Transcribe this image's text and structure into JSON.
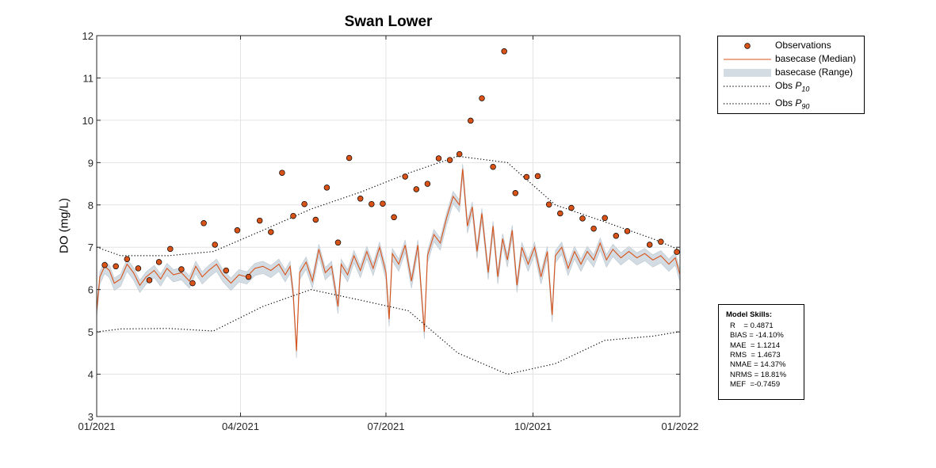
{
  "chart_data": {
    "type": "line",
    "title": "Swan Lower",
    "xlabel": "",
    "ylabel": "DO (mg/L)",
    "xlim": [
      "2021-01-01",
      "2022-01-01"
    ],
    "ylim": [
      3,
      12
    ],
    "x_ticks": [
      {
        "date": "2021-01-01",
        "label": "01/2021"
      },
      {
        "date": "2021-04-01",
        "label": "04/2021"
      },
      {
        "date": "2021-07-01",
        "label": "07/2021"
      },
      {
        "date": "2021-10-01",
        "label": "10/2021"
      },
      {
        "date": "2022-01-01",
        "label": "01/2022"
      }
    ],
    "y_ticks": [
      3,
      4,
      5,
      6,
      7,
      8,
      9,
      10,
      11,
      12
    ],
    "grid": true,
    "legend_position": "outside-top-right",
    "series": [
      {
        "name": "Observations",
        "kind": "scatter",
        "color": "#d95319",
        "edge_color": "#000000",
        "points": [
          [
            "2021-01-06",
            6.58
          ],
          [
            "2021-01-13",
            6.55
          ],
          [
            "2021-01-20",
            6.72
          ],
          [
            "2021-01-27",
            6.5
          ],
          [
            "2021-02-03",
            6.22
          ],
          [
            "2021-02-09",
            6.65
          ],
          [
            "2021-02-16",
            6.96
          ],
          [
            "2021-02-23",
            6.48
          ],
          [
            "2021-03-02",
            6.15
          ],
          [
            "2021-03-09",
            7.57
          ],
          [
            "2021-03-16",
            7.06
          ],
          [
            "2021-03-23",
            6.45
          ],
          [
            "2021-03-30",
            7.4
          ],
          [
            "2021-04-06",
            6.3
          ],
          [
            "2021-04-13",
            7.63
          ],
          [
            "2021-04-20",
            7.36
          ],
          [
            "2021-04-27",
            8.76
          ],
          [
            "2021-05-04",
            7.74
          ],
          [
            "2021-05-11",
            8.02
          ],
          [
            "2021-05-18",
            7.65
          ],
          [
            "2021-05-25",
            8.41
          ],
          [
            "2021-06-01",
            7.11
          ],
          [
            "2021-06-08",
            9.11
          ],
          [
            "2021-06-15",
            8.15
          ],
          [
            "2021-06-22",
            8.02
          ],
          [
            "2021-06-29",
            8.03
          ],
          [
            "2021-07-06",
            7.71
          ],
          [
            "2021-07-13",
            8.67
          ],
          [
            "2021-07-20",
            8.37
          ],
          [
            "2021-07-27",
            8.5
          ],
          [
            "2021-08-03",
            9.1
          ],
          [
            "2021-08-10",
            9.06
          ],
          [
            "2021-08-16",
            9.2
          ],
          [
            "2021-08-23",
            9.99
          ],
          [
            "2021-08-30",
            10.52
          ],
          [
            "2021-09-06",
            8.9
          ],
          [
            "2021-09-13",
            11.63
          ],
          [
            "2021-09-20",
            8.28
          ],
          [
            "2021-09-27",
            8.66
          ],
          [
            "2021-10-04",
            8.68
          ],
          [
            "2021-10-11",
            8.01
          ],
          [
            "2021-10-18",
            7.8
          ],
          [
            "2021-10-25",
            7.93
          ],
          [
            "2021-11-01",
            7.68
          ],
          [
            "2021-11-08",
            7.44
          ],
          [
            "2021-11-15",
            7.69
          ],
          [
            "2021-11-22",
            7.27
          ],
          [
            "2021-11-29",
            7.38
          ],
          [
            "2021-12-13",
            7.06
          ],
          [
            "2021-12-20",
            7.13
          ],
          [
            "2021-12-30",
            6.89
          ]
        ]
      },
      {
        "name": "basecase (Median)",
        "kind": "line",
        "color": "#d95319",
        "points": [
          [
            "2021-01-01",
            5.5
          ],
          [
            "2021-01-03",
            6.3
          ],
          [
            "2021-01-06",
            6.55
          ],
          [
            "2021-01-09",
            6.45
          ],
          [
            "2021-01-12",
            6.15
          ],
          [
            "2021-01-16",
            6.25
          ],
          [
            "2021-01-20",
            6.6
          ],
          [
            "2021-01-24",
            6.4
          ],
          [
            "2021-01-28",
            6.1
          ],
          [
            "2021-02-01",
            6.3
          ],
          [
            "2021-02-06",
            6.45
          ],
          [
            "2021-02-10",
            6.25
          ],
          [
            "2021-02-14",
            6.5
          ],
          [
            "2021-02-18",
            6.35
          ],
          [
            "2021-02-23",
            6.4
          ],
          [
            "2021-02-28",
            6.2
          ],
          [
            "2021-03-04",
            6.55
          ],
          [
            "2021-03-08",
            6.3
          ],
          [
            "2021-03-12",
            6.45
          ],
          [
            "2021-03-17",
            6.6
          ],
          [
            "2021-03-21",
            6.35
          ],
          [
            "2021-03-26",
            6.15
          ],
          [
            "2021-03-31",
            6.35
          ],
          [
            "2021-04-05",
            6.3
          ],
          [
            "2021-04-10",
            6.5
          ],
          [
            "2021-04-15",
            6.55
          ],
          [
            "2021-04-20",
            6.45
          ],
          [
            "2021-04-25",
            6.6
          ],
          [
            "2021-04-29",
            6.35
          ],
          [
            "2021-05-02",
            6.55
          ],
          [
            "2021-05-04",
            5.9
          ],
          [
            "2021-05-06",
            4.55
          ],
          [
            "2021-05-08",
            6.4
          ],
          [
            "2021-05-12",
            6.65
          ],
          [
            "2021-05-16",
            6.2
          ],
          [
            "2021-05-20",
            6.95
          ],
          [
            "2021-05-24",
            6.4
          ],
          [
            "2021-05-28",
            6.55
          ],
          [
            "2021-06-01",
            5.6
          ],
          [
            "2021-06-03",
            6.6
          ],
          [
            "2021-06-07",
            6.35
          ],
          [
            "2021-06-11",
            6.8
          ],
          [
            "2021-06-15",
            6.45
          ],
          [
            "2021-06-19",
            6.9
          ],
          [
            "2021-06-23",
            6.5
          ],
          [
            "2021-06-27",
            7.0
          ],
          [
            "2021-07-01",
            6.4
          ],
          [
            "2021-07-03",
            5.3
          ],
          [
            "2021-07-05",
            6.85
          ],
          [
            "2021-07-09",
            6.6
          ],
          [
            "2021-07-13",
            7.05
          ],
          [
            "2021-07-17",
            6.2
          ],
          [
            "2021-07-21",
            7.05
          ],
          [
            "2021-07-25",
            5.0
          ],
          [
            "2021-07-27",
            6.8
          ],
          [
            "2021-07-31",
            7.3
          ],
          [
            "2021-08-04",
            7.1
          ],
          [
            "2021-08-08",
            7.7
          ],
          [
            "2021-08-12",
            8.2
          ],
          [
            "2021-08-16",
            8.0
          ],
          [
            "2021-08-18",
            8.85
          ],
          [
            "2021-08-21",
            7.5
          ],
          [
            "2021-08-24",
            7.95
          ],
          [
            "2021-08-27",
            6.9
          ],
          [
            "2021-08-30",
            7.8
          ],
          [
            "2021-09-03",
            6.4
          ],
          [
            "2021-09-06",
            7.5
          ],
          [
            "2021-09-09",
            6.3
          ],
          [
            "2021-09-12",
            7.2
          ],
          [
            "2021-09-15",
            6.7
          ],
          [
            "2021-09-18",
            7.4
          ],
          [
            "2021-09-21",
            6.1
          ],
          [
            "2021-09-24",
            7.0
          ],
          [
            "2021-09-28",
            6.6
          ],
          [
            "2021-10-02",
            7.0
          ],
          [
            "2021-10-06",
            6.3
          ],
          [
            "2021-10-10",
            6.9
          ],
          [
            "2021-10-13",
            5.4
          ],
          [
            "2021-10-15",
            6.8
          ],
          [
            "2021-10-19",
            7.0
          ],
          [
            "2021-10-23",
            6.5
          ],
          [
            "2021-10-27",
            6.9
          ],
          [
            "2021-10-31",
            6.6
          ],
          [
            "2021-11-04",
            6.9
          ],
          [
            "2021-11-08",
            6.7
          ],
          [
            "2021-11-12",
            7.1
          ],
          [
            "2021-11-16",
            6.7
          ],
          [
            "2021-11-20",
            6.95
          ],
          [
            "2021-11-25",
            6.75
          ],
          [
            "2021-11-30",
            6.9
          ],
          [
            "2021-12-05",
            6.75
          ],
          [
            "2021-12-10",
            6.85
          ],
          [
            "2021-12-15",
            6.7
          ],
          [
            "2021-12-20",
            6.8
          ],
          [
            "2021-12-25",
            6.6
          ],
          [
            "2021-12-29",
            6.75
          ],
          [
            "2022-01-01",
            6.35
          ]
        ]
      },
      {
        "name": "basecase (Range)",
        "kind": "band",
        "color": "#d3dce3",
        "half_width": 0.12
      },
      {
        "name": "Obs P10",
        "kind": "line",
        "style": "dotted",
        "color": "#000000",
        "points": [
          [
            "2021-01-01",
            5.0
          ],
          [
            "2021-01-16",
            5.07
          ],
          [
            "2021-02-15",
            5.08
          ],
          [
            "2021-03-15",
            5.02
          ],
          [
            "2021-04-15",
            5.6
          ],
          [
            "2021-05-15",
            6.0
          ],
          [
            "2021-06-15",
            5.75
          ],
          [
            "2021-07-15",
            5.5
          ],
          [
            "2021-08-15",
            4.5
          ],
          [
            "2021-09-15",
            4.0
          ],
          [
            "2021-10-15",
            4.25
          ],
          [
            "2021-11-15",
            4.8
          ],
          [
            "2021-12-15",
            4.9
          ],
          [
            "2021-12-31",
            5.0
          ]
        ]
      },
      {
        "name": "Obs P90",
        "kind": "line",
        "style": "dotted",
        "color": "#000000",
        "points": [
          [
            "2021-01-01",
            7.0
          ],
          [
            "2021-01-16",
            6.8
          ],
          [
            "2021-02-15",
            6.8
          ],
          [
            "2021-03-15",
            6.9
          ],
          [
            "2021-04-15",
            7.4
          ],
          [
            "2021-05-15",
            7.9
          ],
          [
            "2021-06-15",
            8.3
          ],
          [
            "2021-07-15",
            8.75
          ],
          [
            "2021-08-15",
            9.15
          ],
          [
            "2021-09-15",
            9.0
          ],
          [
            "2021-10-15",
            8.0
          ],
          [
            "2021-11-15",
            7.6
          ],
          [
            "2021-12-15",
            7.2
          ],
          [
            "2021-12-31",
            6.95
          ]
        ]
      }
    ],
    "legend": [
      {
        "label": "Observations",
        "sub": "",
        "marker": "circle"
      },
      {
        "label": "basecase (Median)",
        "sub": "",
        "marker": "line"
      },
      {
        "label": "basecase (Range)",
        "sub": "",
        "marker": "patch"
      },
      {
        "label": "Obs P",
        "sub": "10",
        "marker": "dotted"
      },
      {
        "label": "Obs P",
        "sub": "90",
        "marker": "dotted"
      }
    ]
  },
  "model_skills": {
    "title": "Model Skills:",
    "rows": [
      "R    = 0.4871",
      "BIAS = -14.10%",
      "MAE  = 1.1214",
      "RMS  = 1.4673",
      "NMAE = 14.37%",
      "NRMS = 18.81%",
      "MEF  =-0.7459"
    ]
  }
}
